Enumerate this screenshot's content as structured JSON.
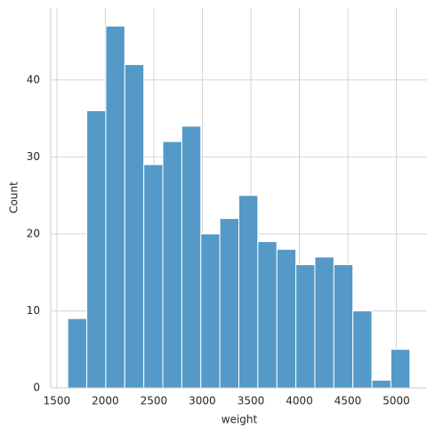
{
  "chart_data": {
    "type": "histogram",
    "x_label": "weight",
    "y_label": "Count",
    "bins": [
      1613,
      1808.94,
      2004.89,
      2200.83,
      2396.78,
      2592.72,
      2788.67,
      2984.61,
      3180.56,
      3376.5,
      3572.44,
      3768.39,
      3964.33,
      4160.28,
      4356.22,
      4552.17,
      4748.11,
      4944.06,
      5140
    ],
    "values": [
      9,
      36,
      47,
      42,
      29,
      32,
      34,
      20,
      22,
      25,
      19,
      18,
      16,
      17,
      16,
      10,
      1,
      5
    ],
    "color": "#5499c7",
    "xlim": [
      1437,
      5316
    ],
    "xticks": [
      1500,
      2000,
      2500,
      3000,
      3500,
      4000,
      4500,
      5000
    ],
    "ylim": [
      0,
      49.35
    ],
    "yticks": [
      0,
      10,
      20,
      30,
      40
    ],
    "grid": true
  }
}
